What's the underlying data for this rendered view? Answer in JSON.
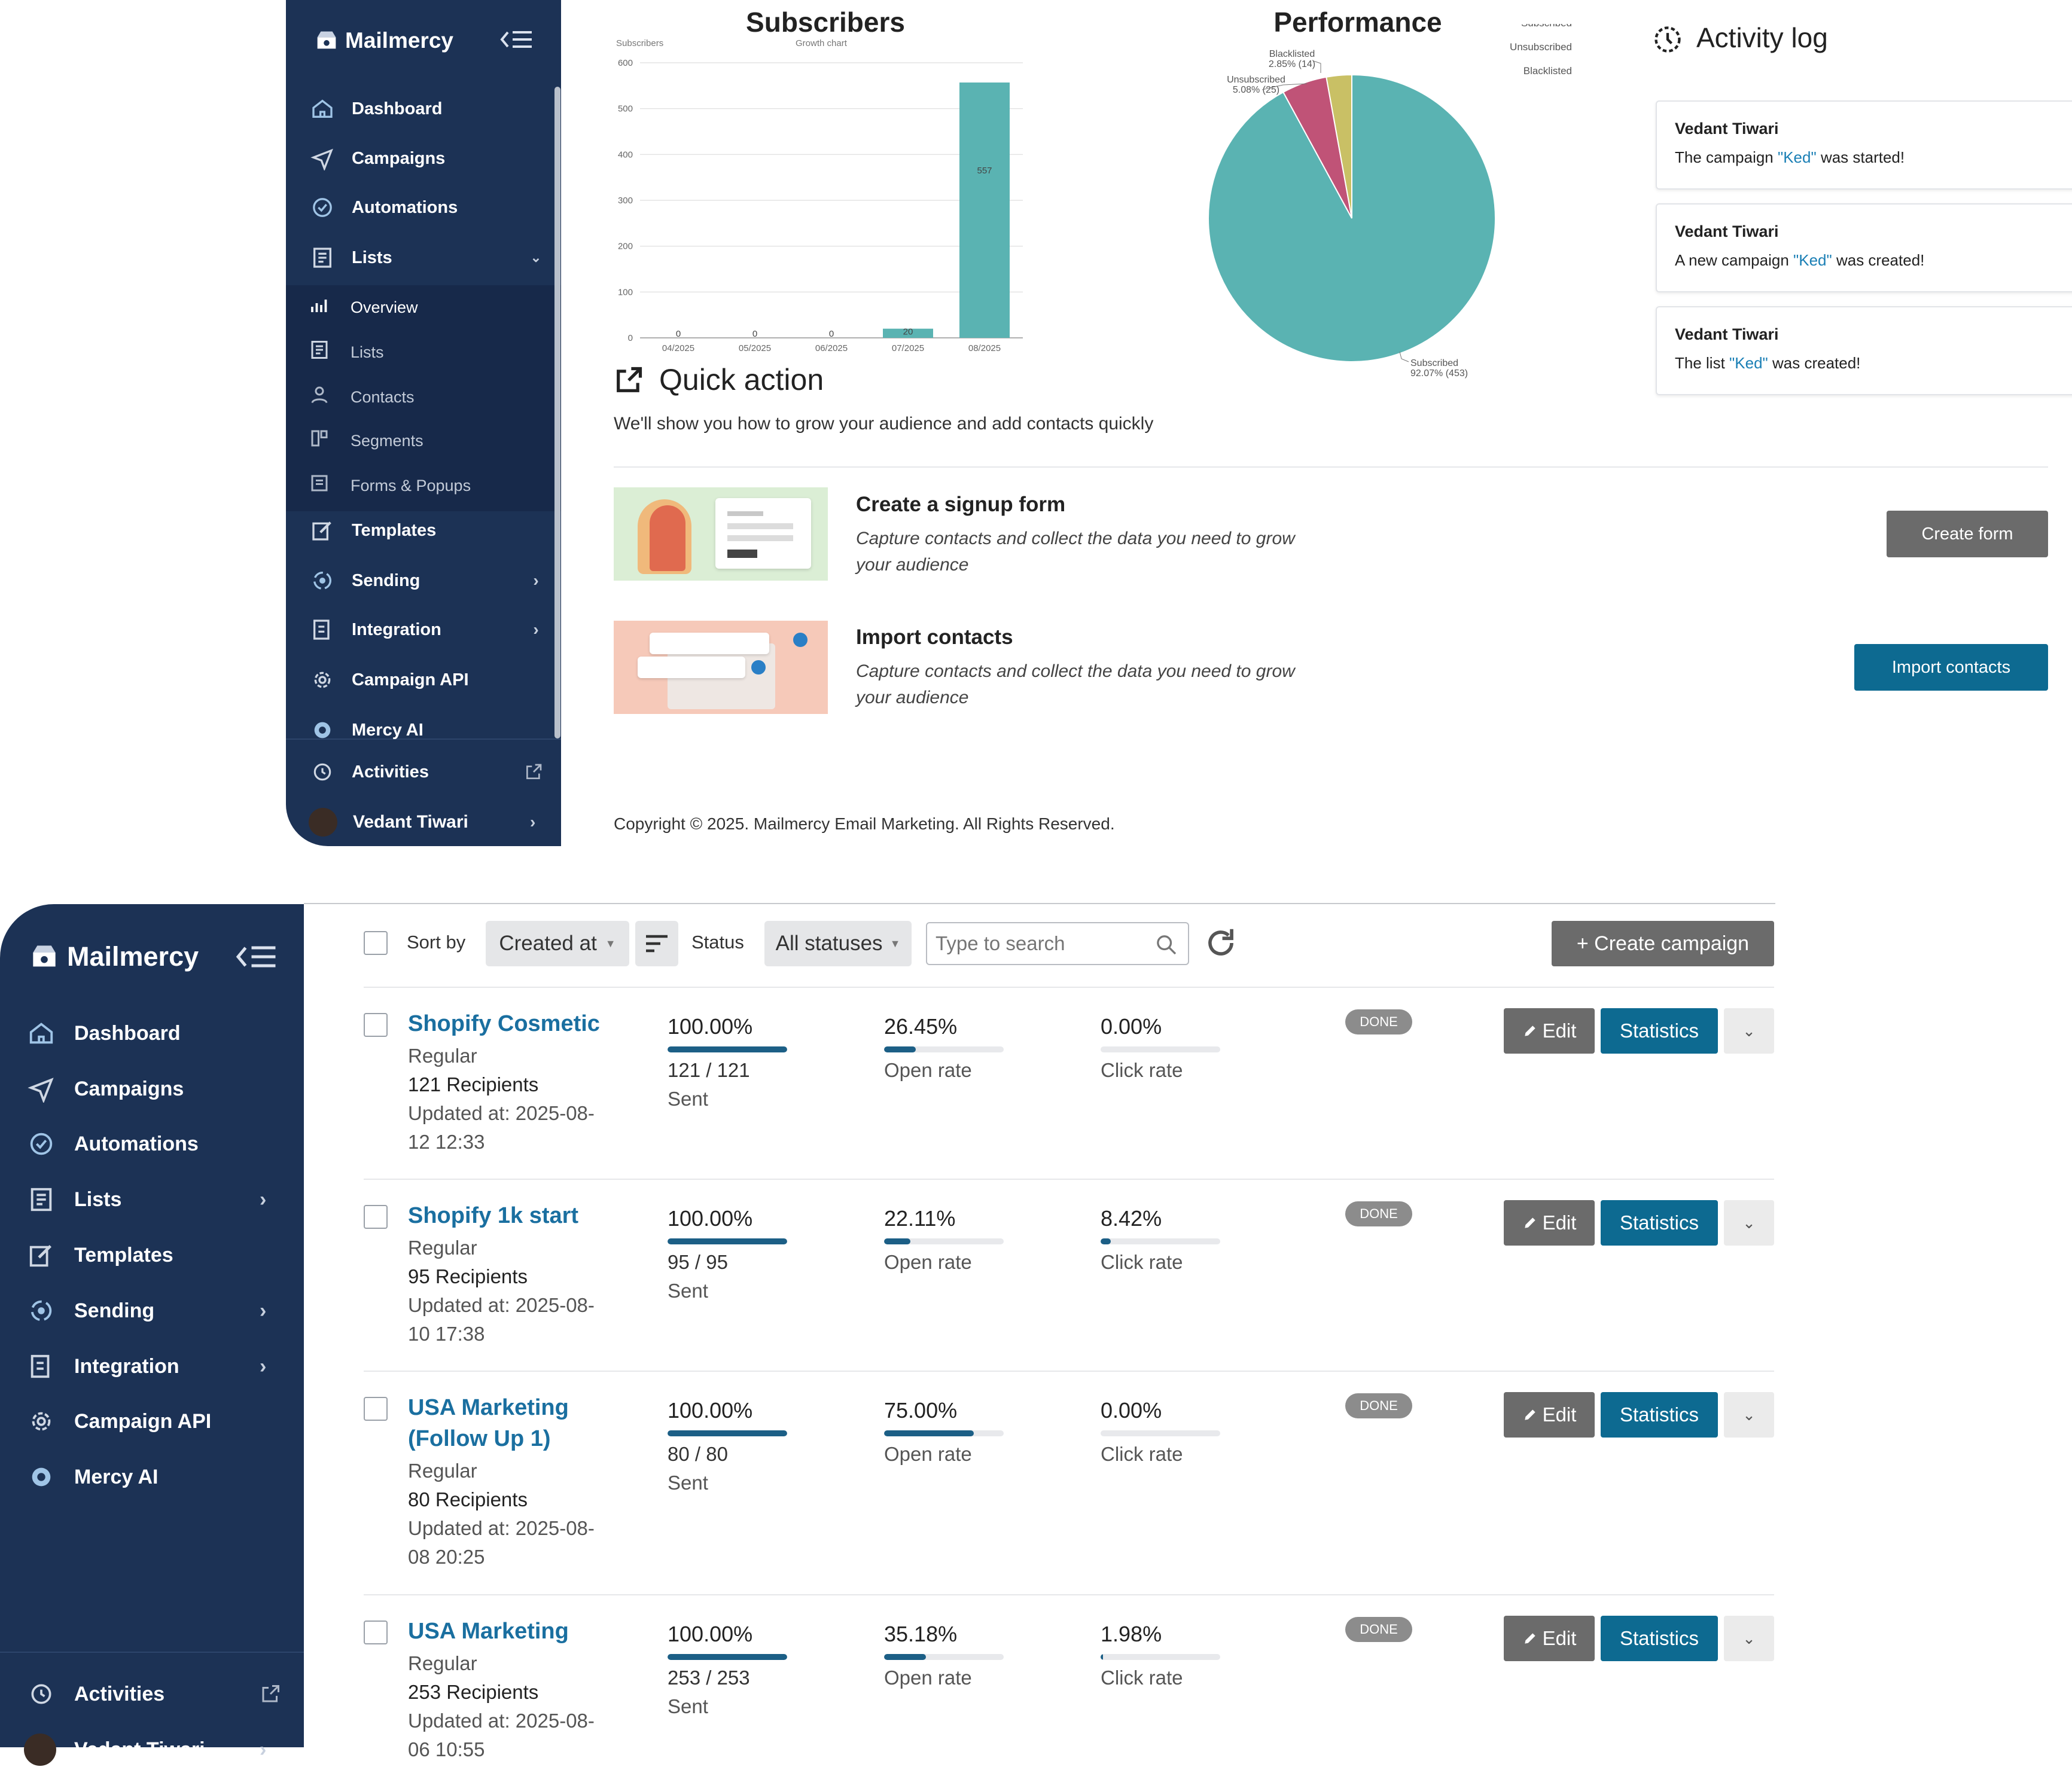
{
  "brand": {
    "name": "Mailmercy"
  },
  "top": {
    "sidebar": {
      "items": [
        {
          "label": "Dashboard",
          "icon": "home-icon"
        },
        {
          "label": "Campaigns",
          "icon": "send-icon"
        },
        {
          "label": "Automations",
          "icon": "shield-check-icon"
        },
        {
          "label": "Lists",
          "icon": "list-icon"
        },
        {
          "label": "Templates",
          "icon": "edit-icon"
        },
        {
          "label": "Sending",
          "icon": "sending-icon"
        },
        {
          "label": "Integration",
          "icon": "integration-icon"
        },
        {
          "label": "Campaign API",
          "icon": "api-icon"
        },
        {
          "label": "Mercy AI",
          "icon": "ai-icon"
        }
      ],
      "subitems": [
        {
          "label": "Overview",
          "icon": "chart-icon"
        },
        {
          "label": "Lists",
          "icon": "list-icon"
        },
        {
          "label": "Contacts",
          "icon": "user-icon"
        },
        {
          "label": "Segments",
          "icon": "segments-icon"
        },
        {
          "label": "Forms & Popups",
          "icon": "form-icon"
        }
      ],
      "activities": "Activities",
      "user": "Vedant Tiwari"
    },
    "subscribers_chart": {
      "title": "Subscribers",
      "subtitle": "Growth chart",
      "ylabel": "Subscribers"
    },
    "performance_chart": {
      "title": "Performance"
    },
    "activity_log": {
      "title": "Activity log",
      "entries": [
        {
          "user": "Vedant Tiwari",
          "pre": "The campaign ",
          "name": "\"Ked\"",
          "post": " was started!"
        },
        {
          "user": "Vedant Tiwari",
          "pre": "A new campaign ",
          "name": "\"Ked\"",
          "post": " was created!"
        },
        {
          "user": "Vedant Tiwari",
          "pre": "The list ",
          "name": "\"Ked\"",
          "post": " was created!"
        }
      ]
    },
    "quick_action": {
      "title": "Quick action",
      "subtitle": "We'll show you how to grow your audience and add contacts quickly",
      "items": [
        {
          "title": "Create a signup form",
          "desc": "Capture contacts and collect the data you need to grow your audience",
          "button": "Create form"
        },
        {
          "title": "Import contacts",
          "desc": "Capture contacts and collect the data you need to grow your audience",
          "button": "Import contacts"
        }
      ]
    },
    "copyright": "Copyright © 2025. Mailmercy Email Marketing. All Rights Reserved."
  },
  "bottom": {
    "sidebar": {
      "items": [
        {
          "label": "Dashboard"
        },
        {
          "label": "Campaigns"
        },
        {
          "label": "Automations"
        },
        {
          "label": "Lists"
        },
        {
          "label": "Templates"
        },
        {
          "label": "Sending"
        },
        {
          "label": "Integration"
        },
        {
          "label": "Campaign API"
        },
        {
          "label": "Mercy AI"
        }
      ],
      "activities": "Activities",
      "user": "Vedant Tiwari"
    },
    "toolbar": {
      "sort_by": "Sort by",
      "sort_value": "Created at",
      "status_label": "Status",
      "status_value": "All statuses",
      "search_placeholder": "Type to search",
      "create_button": "+ Create campaign"
    },
    "labels": {
      "open_rate": "Open rate",
      "click_rate": "Click rate",
      "sent": "Sent",
      "edit": "Edit",
      "statistics": "Statistics",
      "done": "DONE"
    },
    "campaigns": [
      {
        "name": "Shopify Cosmetic",
        "type": "Regular",
        "recipients": "121 Recipients",
        "updated": "Updated at: 2025-08-12 12:33",
        "sent_pct": "100.00%",
        "sent_ratio": "121 / 121",
        "sent_frac": 1.0,
        "open_pct": "26.45%",
        "open_frac": 0.2645,
        "click_pct": "0.00%",
        "click_frac": 0.0,
        "status": "DONE"
      },
      {
        "name": "Shopify 1k start",
        "type": "Regular",
        "recipients": "95 Recipients",
        "updated": "Updated at: 2025-08-10 17:38",
        "sent_pct": "100.00%",
        "sent_ratio": "95 / 95",
        "sent_frac": 1.0,
        "open_pct": "22.11%",
        "open_frac": 0.2211,
        "click_pct": "8.42%",
        "click_frac": 0.0842,
        "status": "DONE"
      },
      {
        "name": "USA Marketing (Follow Up 1)",
        "type": "Regular",
        "recipients": "80 Recipients",
        "updated": "Updated at: 2025-08-08 20:25",
        "sent_pct": "100.00%",
        "sent_ratio": "80 / 80",
        "sent_frac": 1.0,
        "open_pct": "75.00%",
        "open_frac": 0.75,
        "click_pct": "0.00%",
        "click_frac": 0.0,
        "status": "DONE"
      },
      {
        "name": "USA Marketing",
        "type": "Regular",
        "recipients": "253 Recipients",
        "updated": "Updated at: 2025-08-06 10:55",
        "sent_pct": "100.00%",
        "sent_ratio": "253 / 253",
        "sent_frac": 1.0,
        "open_pct": "35.18%",
        "open_frac": 0.3518,
        "click_pct": "1.98%",
        "click_frac": 0.0198,
        "status": "DONE"
      }
    ]
  },
  "colors": {
    "sidebar": "#1c3255",
    "teal": "#5ab3b2",
    "pink": "#c05377",
    "olive": "#c9c065",
    "primary": "#0d6a91",
    "dark_button": "#6b6b6b"
  },
  "chart_data": [
    {
      "type": "bar",
      "title": "Subscribers",
      "subtitle": "Growth chart",
      "ylabel": "Subscribers",
      "categories": [
        "04/2025",
        "05/2025",
        "06/2025",
        "07/2025",
        "08/2025"
      ],
      "values": [
        0,
        0,
        0,
        20,
        557
      ],
      "ylim": [
        0,
        600
      ],
      "yticks": [
        0,
        100,
        200,
        300,
        400,
        500,
        600
      ],
      "grid": true
    },
    {
      "type": "pie",
      "title": "Performance",
      "legend": [
        "Subscribed",
        "Unsubscribed",
        "Blacklisted"
      ],
      "legend_position": "top-right",
      "slices": [
        {
          "label": "Subscribed",
          "value": 453,
          "pct": "92.07%",
          "color": "#5ab3b2"
        },
        {
          "label": "Unsubscribed",
          "value": 25,
          "pct": "5.08%",
          "color": "#c05377"
        },
        {
          "label": "Blacklisted",
          "value": 14,
          "pct": "2.85%",
          "color": "#c9c065"
        }
      ]
    }
  ]
}
